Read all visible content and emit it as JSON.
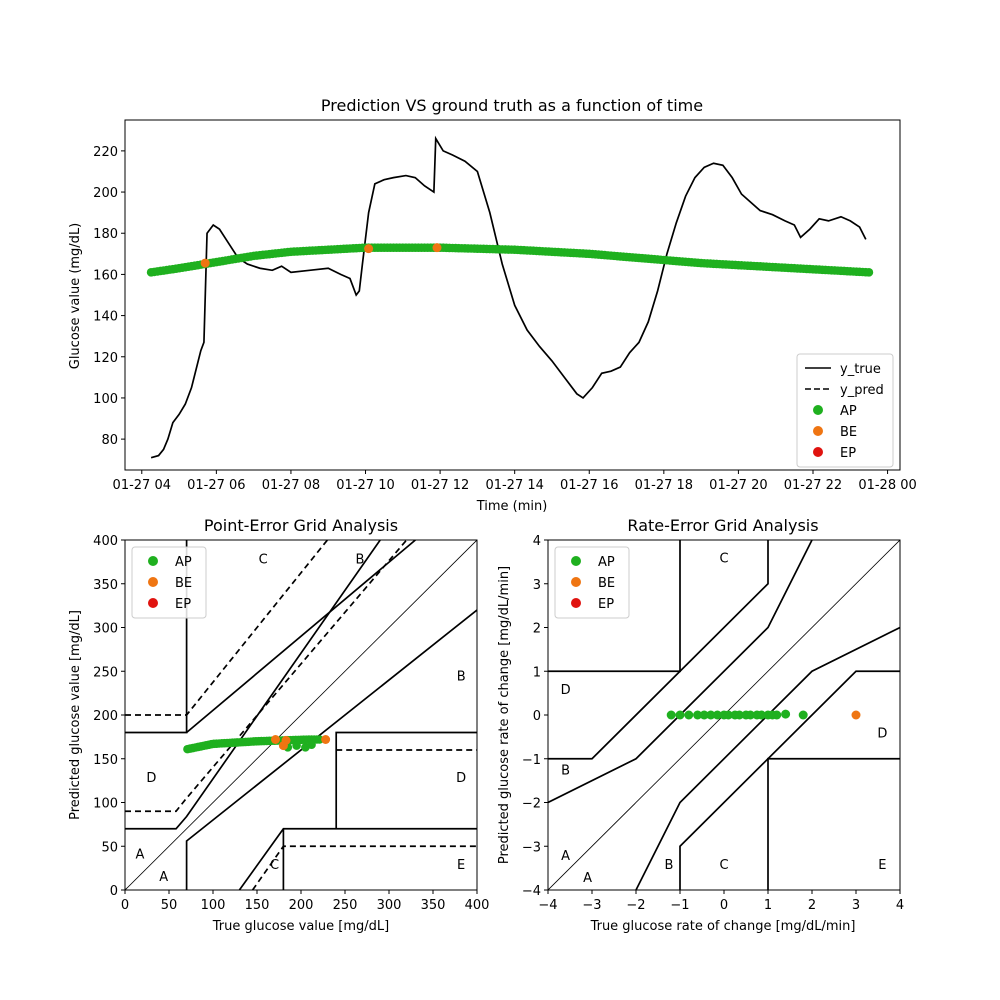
{
  "colors": {
    "AP": "#1fb01f",
    "BE": "#ef7512",
    "EP": "#e0130f",
    "line": "#000000"
  },
  "chart_data": [
    {
      "type": "line",
      "title": "Prediction VS ground truth as a function of time",
      "xlabel": "Time (min)",
      "ylabel": "Glucose value (mg/dL)",
      "xlim": [
        "01-27 03:33",
        "01-28 00:20"
      ],
      "ylim": [
        65,
        235
      ],
      "x_ticks": [
        "01-27 04",
        "01-27 06",
        "01-27 08",
        "01-27 10",
        "01-27 12",
        "01-27 14",
        "01-27 16",
        "01-27 18",
        "01-27 20",
        "01-27 22",
        "01-28 00"
      ],
      "y_ticks": [
        80,
        100,
        120,
        140,
        160,
        180,
        200,
        220
      ],
      "legend": {
        "position": "lower-right",
        "entries": [
          "y_true",
          "y_pred",
          "AP",
          "BE",
          "EP"
        ]
      },
      "y_true": [
        [
          "01-27 04:15",
          71
        ],
        [
          "01-27 04:27",
          72
        ],
        [
          "01-27 04:35",
          75
        ],
        [
          "01-27 04:42",
          80
        ],
        [
          "01-27 04:50",
          88
        ],
        [
          "01-27 05:00",
          92
        ],
        [
          "01-27 05:10",
          97
        ],
        [
          "01-27 05:20",
          105
        ],
        [
          "01-27 05:30",
          117
        ],
        [
          "01-27 05:35",
          123
        ],
        [
          "01-27 05:40",
          127
        ],
        [
          "01-27 05:45",
          180
        ],
        [
          "01-27 05:55",
          184
        ],
        [
          "01-27 06:05",
          182
        ],
        [
          "01-27 06:20",
          175
        ],
        [
          "01-27 06:35",
          168
        ],
        [
          "01-27 06:50",
          165
        ],
        [
          "01-27 07:10",
          163
        ],
        [
          "01-27 07:30",
          162
        ],
        [
          "01-27 07:45",
          164
        ],
        [
          "01-27 08:00",
          161
        ],
        [
          "01-27 08:30",
          162
        ],
        [
          "01-27 09:00",
          163
        ],
        [
          "01-27 09:20",
          160
        ],
        [
          "01-27 09:35",
          158
        ],
        [
          "01-27 09:45",
          150
        ],
        [
          "01-27 09:50",
          152
        ],
        [
          "01-27 09:55",
          165
        ],
        [
          "01-27 10:05",
          190
        ],
        [
          "01-27 10:15",
          204
        ],
        [
          "01-27 10:30",
          206
        ],
        [
          "01-27 10:45",
          207
        ],
        [
          "01-27 11:05",
          208
        ],
        [
          "01-27 11:20",
          207
        ],
        [
          "01-27 11:35",
          203
        ],
        [
          "01-27 11:50",
          200
        ],
        [
          "01-27 11:53",
          226
        ],
        [
          "01-27 12:05",
          220
        ],
        [
          "01-27 12:20",
          218
        ],
        [
          "01-27 12:40",
          215
        ],
        [
          "01-27 13:00",
          210
        ],
        [
          "01-27 13:20",
          190
        ],
        [
          "01-27 13:40",
          165
        ],
        [
          "01-27 14:00",
          145
        ],
        [
          "01-27 14:20",
          133
        ],
        [
          "01-27 14:40",
          125
        ],
        [
          "01-27 15:00",
          118
        ],
        [
          "01-27 15:20",
          110
        ],
        [
          "01-27 15:40",
          102
        ],
        [
          "01-27 15:50",
          100
        ],
        [
          "01-27 16:05",
          105
        ],
        [
          "01-27 16:20",
          112
        ],
        [
          "01-27 16:35",
          113
        ],
        [
          "01-27 16:50",
          115
        ],
        [
          "01-27 17:05",
          122
        ],
        [
          "01-27 17:20",
          127
        ],
        [
          "01-27 17:35",
          137
        ],
        [
          "01-27 17:50",
          152
        ],
        [
          "01-27 18:05",
          170
        ],
        [
          "01-27 18:20",
          185
        ],
        [
          "01-27 18:35",
          198
        ],
        [
          "01-27 18:50",
          207
        ],
        [
          "01-27 19:05",
          212
        ],
        [
          "01-27 19:20",
          214
        ],
        [
          "01-27 19:35",
          213
        ],
        [
          "01-27 19:50",
          207
        ],
        [
          "01-27 20:05",
          199
        ],
        [
          "01-27 20:20",
          195
        ],
        [
          "01-27 20:35",
          191
        ],
        [
          "01-27 20:55",
          189
        ],
        [
          "01-27 21:15",
          186
        ],
        [
          "01-27 21:30",
          184
        ],
        [
          "01-27 21:40",
          178
        ],
        [
          "01-27 21:55",
          182
        ],
        [
          "01-27 22:10",
          187
        ],
        [
          "01-27 22:25",
          186
        ],
        [
          "01-27 22:45",
          188
        ],
        [
          "01-27 23:00",
          186
        ],
        [
          "01-27 23:15",
          183
        ],
        [
          "01-27 23:25",
          177
        ]
      ],
      "y_pred": [
        [
          "01-27 04:15",
          161
        ],
        [
          "01-27 05:00",
          163
        ],
        [
          "01-27 06:00",
          166
        ],
        [
          "01-27 07:00",
          169
        ],
        [
          "01-27 08:00",
          171
        ],
        [
          "01-27 09:00",
          172
        ],
        [
          "01-27 10:00",
          173
        ],
        [
          "01-27 11:00",
          173
        ],
        [
          "01-27 12:00",
          173
        ],
        [
          "01-27 13:00",
          172.5
        ],
        [
          "01-27 14:00",
          172
        ],
        [
          "01-27 15:00",
          171
        ],
        [
          "01-27 16:00",
          170
        ],
        [
          "01-27 17:00",
          168.5
        ],
        [
          "01-27 18:00",
          167
        ],
        [
          "01-27 19:00",
          165.5
        ],
        [
          "01-27 20:00",
          164.5
        ],
        [
          "01-27 21:00",
          163.5
        ],
        [
          "01-27 22:00",
          162.5
        ],
        [
          "01-27 23:00",
          161.5
        ],
        [
          "01-27 23:30",
          161
        ]
      ],
      "BE_points": [
        [
          "01-27 05:42",
          165.5
        ],
        [
          "01-27 10:05",
          172.5
        ],
        [
          "01-27 11:55",
          173
        ]
      ]
    },
    {
      "type": "scatter",
      "title": "Point-Error Grid Analysis",
      "xlabel": "True glucose value [mg/dL]",
      "ylabel": "Predicted glucose value [mg/dL]",
      "xlim": [
        0,
        400
      ],
      "ylim": [
        0,
        400
      ],
      "x_ticks": [
        0,
        50,
        100,
        150,
        200,
        250,
        300,
        350,
        400
      ],
      "y_ticks": [
        0,
        50,
        100,
        150,
        200,
        250,
        300,
        350,
        400
      ],
      "legend": {
        "position": "top-left",
        "entries": [
          "AP",
          "BE",
          "EP"
        ]
      },
      "zone_labels": [
        {
          "text": "A",
          "x": 17,
          "y": 42
        },
        {
          "text": "A",
          "x": 44,
          "y": 16
        },
        {
          "text": "B",
          "x": 267,
          "y": 379
        },
        {
          "text": "B",
          "x": 382,
          "y": 245
        },
        {
          "text": "C",
          "x": 157,
          "y": 379
        },
        {
          "text": "C",
          "x": 170,
          "y": 30
        },
        {
          "text": "D",
          "x": 30,
          "y": 129
        },
        {
          "text": "D",
          "x": 382,
          "y": 129
        },
        {
          "text": "E",
          "x": 382,
          "y": 30
        }
      ],
      "AP_x_range": [
        71,
        222
      ],
      "AP_y_at_x": [
        [
          71,
          161
        ],
        [
          100,
          167
        ],
        [
          150,
          170
        ],
        [
          180,
          171
        ],
        [
          210,
          172
        ],
        [
          222,
          172
        ]
      ],
      "AP_extra": [
        [
          185,
          163
        ],
        [
          195,
          165
        ],
        [
          205,
          163
        ],
        [
          212,
          166
        ]
      ],
      "BE_points": [
        [
          171,
          172
        ],
        [
          183,
          171
        ],
        [
          180,
          165
        ],
        [
          228,
          172
        ]
      ]
    },
    {
      "type": "scatter",
      "title": "Rate-Error Grid Analysis",
      "xlabel": "True glucose rate of change [mg/dL/min]",
      "ylabel": "Predicted glucose rate of change [mg/dL/min]",
      "xlim": [
        -4,
        4
      ],
      "ylim": [
        -4,
        4
      ],
      "x_ticks": [
        -4,
        -3,
        -2,
        -1,
        0,
        1,
        2,
        3,
        4
      ],
      "y_ticks": [
        -4,
        -3,
        -2,
        -1,
        0,
        1,
        2,
        3,
        4
      ],
      "legend": {
        "position": "top-left",
        "entries": [
          "AP",
          "BE",
          "EP"
        ]
      },
      "zone_labels": [
        {
          "text": "A",
          "x": -3.6,
          "y": -3.2
        },
        {
          "text": "A",
          "x": -3.1,
          "y": -3.7
        },
        {
          "text": "B",
          "x": -1.25,
          "y": -3.4
        },
        {
          "text": "B",
          "x": -3.6,
          "y": -1.25
        },
        {
          "text": "C",
          "x": 0.0,
          "y": 3.6
        },
        {
          "text": "C",
          "x": 0.0,
          "y": -3.4
        },
        {
          "text": "D",
          "x": -3.6,
          "y": 0.6
        },
        {
          "text": "D",
          "x": 3.6,
          "y": -0.4
        },
        {
          "text": "E",
          "x": 3.6,
          "y": -3.4
        }
      ],
      "AP_points": [
        [
          -1.2,
          0
        ],
        [
          -1.0,
          0
        ],
        [
          -0.8,
          0
        ],
        [
          -0.6,
          0
        ],
        [
          -0.45,
          0
        ],
        [
          -0.3,
          0
        ],
        [
          -0.15,
          0
        ],
        [
          0.0,
          0
        ],
        [
          0.1,
          0
        ],
        [
          0.25,
          0
        ],
        [
          0.35,
          0
        ],
        [
          0.5,
          0
        ],
        [
          0.6,
          0
        ],
        [
          0.75,
          0
        ],
        [
          0.85,
          0
        ],
        [
          1.0,
          0
        ],
        [
          1.1,
          0
        ],
        [
          1.2,
          0
        ],
        [
          1.4,
          0.02
        ],
        [
          1.8,
          0
        ]
      ],
      "BE_points": [
        [
          3.0,
          0
        ]
      ]
    }
  ]
}
